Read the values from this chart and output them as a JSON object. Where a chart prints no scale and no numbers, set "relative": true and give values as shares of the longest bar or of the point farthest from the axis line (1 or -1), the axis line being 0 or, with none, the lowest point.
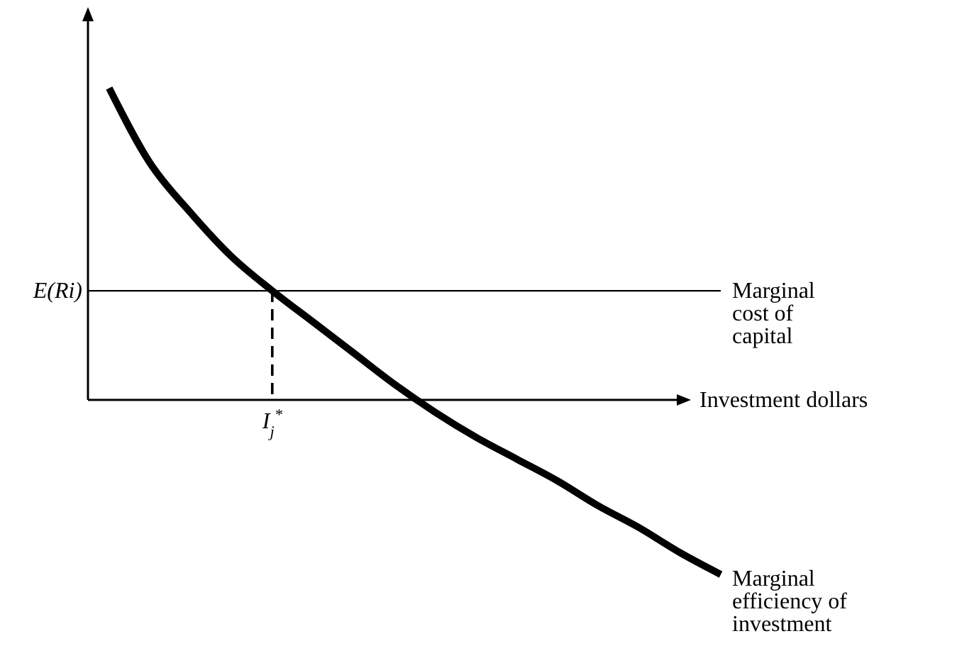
{
  "chart_data": {
    "type": "line",
    "relative": true,
    "xlabel": "Investment dollars",
    "categories": [
      null,
      null,
      null,
      null,
      null,
      null,
      null,
      null,
      null,
      null,
      null,
      null,
      null,
      null,
      null,
      null
    ],
    "series": [
      {
        "name": "Marginal efficiency of investment",
        "color": "#000000",
        "values": [
          1.0,
          0.76,
          0.6,
          0.46,
          0.35,
          0.25,
          0.15,
          0.05,
          -0.04,
          -0.12,
          -0.19,
          -0.26,
          -0.34,
          -0.41,
          -0.49,
          -0.56
        ]
      }
    ],
    "ref_lines": [
      {
        "axis": "y",
        "value": 0.35,
        "label": "E(Ri)",
        "color": "#000000",
        "line_style": "solid"
      }
    ],
    "annotations": [
      "Marginal cost of capital",
      {
        "text": "I$_{j}$$^{*}$",
        "y": 0.35
      }
    ]
  }
}
